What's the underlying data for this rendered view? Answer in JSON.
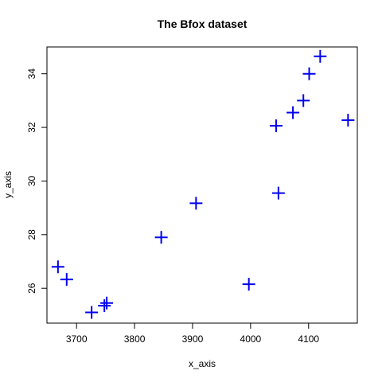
{
  "chart_data": {
    "type": "scatter",
    "title": "The Bfox dataset",
    "xlabel": "x_axis",
    "ylabel": "y_axis",
    "xlim": [
      3649,
      4184
    ],
    "ylim": [
      24.7,
      35.0
    ],
    "xticks": [
      3700,
      3800,
      3900,
      4000,
      4100
    ],
    "yticks": [
      26,
      28,
      30,
      32,
      34
    ],
    "grid": false,
    "legend": "none",
    "marker": "plus",
    "marker_color": "#0000ee",
    "series": [
      {
        "x": [
          3668,
          3683,
          3726,
          3748,
          3752,
          3846,
          3906,
          3997,
          4044,
          4048,
          4073,
          4091,
          4101,
          4120,
          4168
        ],
        "y": [
          26.8,
          26.33,
          25.1,
          25.35,
          25.45,
          27.9,
          29.17,
          26.15,
          32.06,
          29.55,
          32.55,
          33.0,
          34.0,
          34.65,
          32.27
        ]
      }
    ]
  }
}
